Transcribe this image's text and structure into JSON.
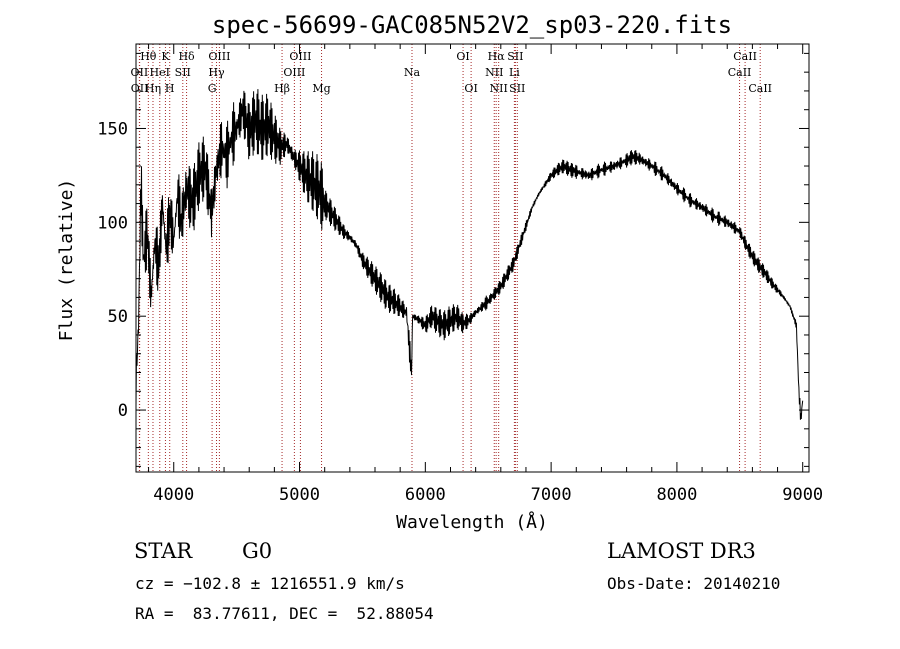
{
  "chart_data": {
    "type": "line",
    "title": "spec-56699-GAC085N52V2_sp03-220.fits",
    "xlabel": "Wavelength (Å)",
    "ylabel": "Flux (relative)",
    "xlim": [
      3700,
      9050
    ],
    "ylim": [
      -33,
      195
    ],
    "xticks": [
      4000,
      5000,
      6000,
      7000,
      8000,
      9000
    ],
    "yticks": [
      0,
      50,
      100,
      150
    ],
    "series": [
      {
        "name": "flux",
        "x": [
          3700,
          3720,
          3740,
          3760,
          3790,
          3820,
          3850,
          3880,
          3910,
          3940,
          3970,
          4000,
          4030,
          4060,
          4100,
          4150,
          4200,
          4250,
          4300,
          4340,
          4380,
          4420,
          4460,
          4500,
          4550,
          4600,
          4650,
          4700,
          4750,
          4800,
          4850,
          4900,
          4950,
          5000,
          5050,
          5100,
          5150,
          5200,
          5250,
          5300,
          5350,
          5400,
          5450,
          5500,
          5550,
          5600,
          5650,
          5700,
          5750,
          5800,
          5850,
          5890,
          5900,
          5950,
          6000,
          6050,
          6100,
          6150,
          6200,
          6250,
          6300,
          6350,
          6400,
          6450,
          6500,
          6550,
          6600,
          6650,
          6700,
          6750,
          6800,
          6850,
          6900,
          6950,
          7000,
          7050,
          7100,
          7150,
          7200,
          7300,
          7400,
          7500,
          7600,
          7650,
          7700,
          7800,
          7900,
          8000,
          8100,
          8200,
          8300,
          8400,
          8500,
          8550,
          8600,
          8650,
          8700,
          8750,
          8800,
          8850,
          8900,
          8950,
          8970,
          8985,
          9000
        ],
        "values": [
          15,
          45,
          120,
          80,
          95,
          60,
          90,
          75,
          110,
          85,
          105,
          90,
          115,
          100,
          118,
          110,
          125,
          130,
          105,
          128,
          140,
          135,
          145,
          150,
          160,
          148,
          155,
          150,
          152,
          145,
          140,
          142,
          135,
          130,
          125,
          122,
          118,
          110,
          105,
          100,
          95,
          92,
          88,
          80,
          75,
          70,
          65,
          60,
          58,
          55,
          52,
          20,
          50,
          48,
          45,
          50,
          47,
          45,
          48,
          50,
          46,
          48,
          52,
          55,
          58,
          62,
          66,
          72,
          78,
          88,
          98,
          108,
          115,
          120,
          125,
          128,
          130,
          128,
          127,
          125,
          128,
          130,
          133,
          135,
          134,
          130,
          125,
          118,
          112,
          108,
          103,
          100,
          95,
          88,
          82,
          77,
          73,
          68,
          64,
          60,
          55,
          45,
          10,
          -5,
          5
        ]
      }
    ],
    "lines": [
      {
        "label": "Hθ",
        "x": 3798,
        "row": 0
      },
      {
        "label": "OII",
        "x": 3727,
        "row": 1
      },
      {
        "label": "OII",
        "x": 3729,
        "row": 2
      },
      {
        "label": "Hη",
        "x": 3835,
        "row": 2
      },
      {
        "label": "HeI",
        "x": 3889,
        "row": 1
      },
      {
        "label": "K",
        "x": 3934,
        "row": 0
      },
      {
        "label": "H",
        "x": 3968,
        "row": 2
      },
      {
        "label": "SII",
        "x": 4072,
        "row": 1
      },
      {
        "label": "Hδ",
        "x": 4102,
        "row": 0
      },
      {
        "label": "OIII",
        "x": 4363,
        "row": 0
      },
      {
        "label": "Hγ",
        "x": 4340,
        "row": 1
      },
      {
        "label": "G",
        "x": 4305,
        "row": 2
      },
      {
        "label": "Hβ",
        "x": 4861,
        "row": 2
      },
      {
        "label": "OIII",
        "x": 4959,
        "row": 1
      },
      {
        "label": "OIII",
        "x": 5007,
        "row": 0
      },
      {
        "label": "Mg",
        "x": 5175,
        "row": 2
      },
      {
        "label": "Na",
        "x": 5894,
        "row": 1
      },
      {
        "label": "OI",
        "x": 6300,
        "row": 0
      },
      {
        "label": "OI",
        "x": 6364,
        "row": 2
      },
      {
        "label": "NII",
        "x": 6548,
        "row": 1
      },
      {
        "label": "Hα",
        "x": 6563,
        "row": 0
      },
      {
        "label": "NII",
        "x": 6583,
        "row": 2
      },
      {
        "label": "SII",
        "x": 6716,
        "row": 0
      },
      {
        "label": "Li",
        "x": 6708,
        "row": 1
      },
      {
        "label": "SII",
        "x": 6731,
        "row": 2
      },
      {
        "label": "CaII",
        "x": 8498,
        "row": 1
      },
      {
        "label": "CaII",
        "x": 8542,
        "row": 0
      },
      {
        "label": "CaII",
        "x": 8662,
        "row": 2
      }
    ]
  },
  "info": {
    "class_label": "STAR",
    "subclass": "G0",
    "survey": "LAMOST DR3",
    "cz": "cz = −102.8 ± 1216551.9 km/s",
    "obs_date": "Obs-Date: 20140210",
    "radec": "RA =  83.77611, DEC =  52.88054"
  },
  "colors": {
    "spectrum": "#000000",
    "line_markers": "#a52a2a",
    "axes": "#000000"
  }
}
